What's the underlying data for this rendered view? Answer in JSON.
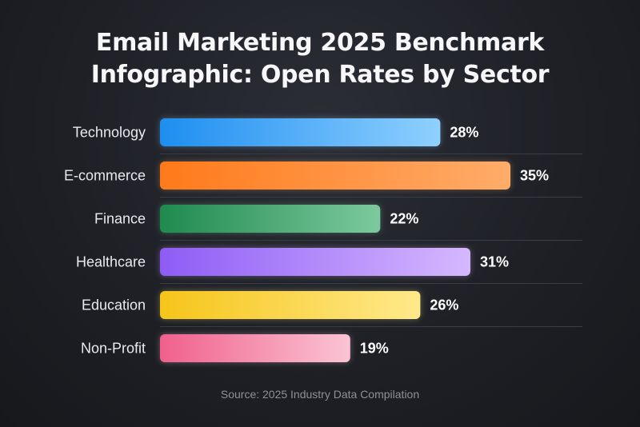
{
  "chart_data": {
    "type": "bar",
    "orientation": "horizontal",
    "title_lines": [
      "Email Marketing 2025 Benchmark",
      "Infographic: Open Rates by Sector"
    ],
    "categories": [
      "Technology",
      "E-commerce",
      "Finance",
      "Healthcare",
      "Education",
      "Non-Profit"
    ],
    "values": [
      28,
      35,
      22,
      31,
      26,
      19
    ],
    "value_labels": [
      "28%",
      "35%",
      "22%",
      "31%",
      "26%",
      "19%"
    ],
    "unit": "%",
    "xlim": [
      0,
      35
    ],
    "grid": false,
    "legend": "none",
    "colors": [
      [
        "#1d8ef0",
        "#8fd0ff"
      ],
      [
        "#ff7a1a",
        "#ffac6a"
      ],
      [
        "#1f8a4e",
        "#7cc99e"
      ],
      [
        "#8e5cf5",
        "#d6b8ff"
      ],
      [
        "#f6c51a",
        "#ffe98a"
      ],
      [
        "#f0608c",
        "#fbc4d4"
      ]
    ],
    "source": "Source: 2025 Industry Data Compilation"
  }
}
